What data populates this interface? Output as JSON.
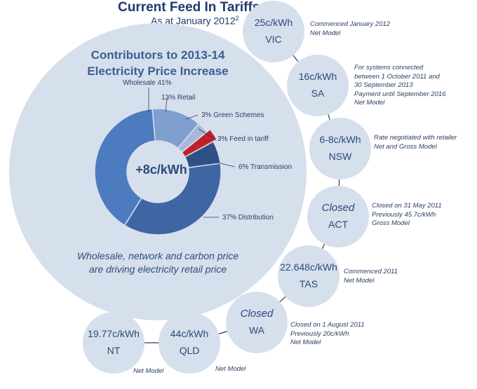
{
  "header": {
    "title": "Current Feed In Tariffs",
    "subtitle": "As at January 2012",
    "subtitle_sup": "2"
  },
  "panel": {
    "title_line1": "Contributors to 2013-14",
    "title_line2": "Electricity Price Increase",
    "center_label": "+8c/kWh",
    "note_line1": "Wholesale, network and carbon price",
    "note_line2": "are driving electricity retail price"
  },
  "chart_data": {
    "type": "pie",
    "title": "Contributors to 2013-14 Electricity Price Increase",
    "center_label": "+8c/kWh",
    "slices": [
      {
        "name": "Retail",
        "label": "13%  Retail",
        "value": 13,
        "color": "#7f9fcf"
      },
      {
        "name": "Green Schemes",
        "label": "3%  Green Schemes",
        "value": 3,
        "color": "#a7b9d8"
      },
      {
        "name": "Feed in tariff",
        "label": "3%  Feed in tariff",
        "value": 3,
        "color": "#c0202c"
      },
      {
        "name": "Transmission",
        "label": "6%  Transmission",
        "value": 6,
        "color": "#2f5085"
      },
      {
        "name": "Distribution",
        "label": "37%  Distribution",
        "value": 37,
        "color": "#3f65a3"
      },
      {
        "name": "Wholesale",
        "label": "Wholesale  41%",
        "value": 41,
        "color": "#4d7bbf"
      }
    ]
  },
  "states": [
    {
      "state": "VIC",
      "rate": "25c/kWh",
      "note": [
        "Commenced January 2012",
        "Net Model"
      ]
    },
    {
      "state": "SA",
      "rate": "16c/kWh",
      "note": [
        "For systems connected",
        "between 1 October 2011 and",
        "30 September 2013",
        "Payment until September 2016",
        "Net Model"
      ]
    },
    {
      "state": "NSW",
      "rate": "6-8c/kWh",
      "note": [
        "Rate negotiated with retailer",
        "Net and Gross Model"
      ]
    },
    {
      "state": "ACT",
      "rate": "Closed",
      "note": [
        "Closed on 31 May 2011",
        "Previously 45.7c/kWh",
        "Gross Model"
      ]
    },
    {
      "state": "TAS",
      "rate": "22.648c/kWh",
      "note": [
        "Commenced 2011",
        "Net Model"
      ]
    },
    {
      "state": "WA",
      "rate": "Closed",
      "note": [
        "Closed on 1 August 2011",
        "Previously 20c/kWh",
        "Net Model"
      ]
    },
    {
      "state": "QLD",
      "rate": "44c/kWh",
      "note": [
        "Net Model"
      ]
    },
    {
      "state": "NT",
      "rate": "19.77c/kWh",
      "note": [
        "Net Model"
      ]
    }
  ],
  "colors": {
    "bubble": "#d6dfec",
    "connector": "#2b3a55",
    "text": "#2b4a7c"
  }
}
